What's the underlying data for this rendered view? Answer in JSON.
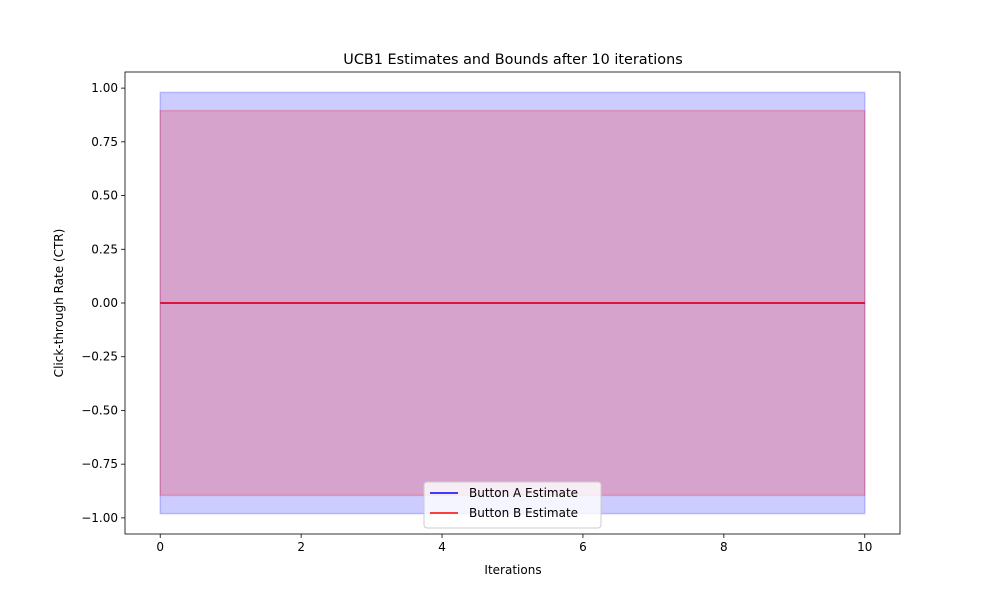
{
  "chart_data": {
    "type": "line",
    "title": "UCB1 Estimates and Bounds after 10 iterations",
    "xlabel": "Iterations",
    "ylabel": "Click-through Rate (CTR)",
    "xlim": [
      -0.5,
      10.5
    ],
    "ylim": [
      -1.075,
      1.075
    ],
    "xticks": [
      0,
      2,
      4,
      6,
      8,
      10
    ],
    "xtick_labels": [
      "0",
      "2",
      "4",
      "6",
      "8",
      "10"
    ],
    "yticks": [
      1.0,
      0.75,
      0.5,
      0.25,
      0.0,
      -0.25,
      -0.5,
      -0.75,
      -1.0
    ],
    "ytick_labels": [
      "1.00",
      "0.75",
      "0.50",
      "0.25",
      "0.00",
      "−0.25",
      "−0.50",
      "−0.75",
      "−1.00"
    ],
    "grid": false,
    "legend_position": "lower-center",
    "x": [
      0,
      10
    ],
    "series": [
      {
        "name": "Button A Estimate",
        "color": "#0000ff",
        "values": [
          0.0,
          0.0
        ],
        "band_lower": [
          -0.98,
          -0.98
        ],
        "band_upper": [
          0.98,
          0.98
        ],
        "band_color": "#0000ff",
        "band_opacity": 0.2
      },
      {
        "name": "Button B Estimate",
        "color": "#ff0000",
        "values": [
          0.0,
          0.0
        ],
        "band_lower": [
          -0.895,
          -0.895
        ],
        "band_upper": [
          0.895,
          0.895
        ],
        "band_color": "#ff0000",
        "band_opacity": 0.2
      }
    ]
  }
}
